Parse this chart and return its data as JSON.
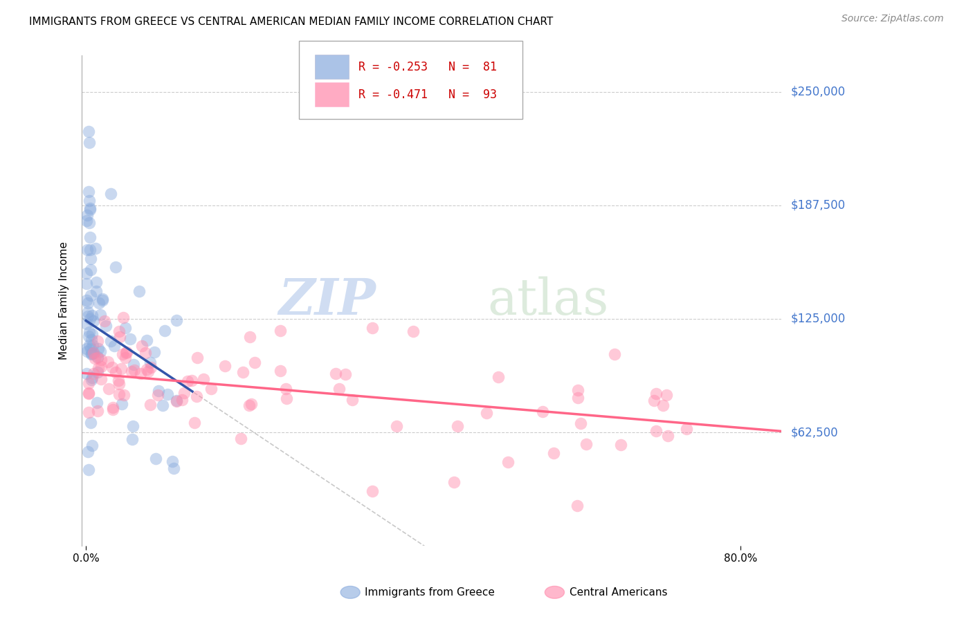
{
  "title": "IMMIGRANTS FROM GREECE VS CENTRAL AMERICAN MEDIAN FAMILY INCOME CORRELATION CHART",
  "source": "Source: ZipAtlas.com",
  "ylabel": "Median Family Income",
  "ytick_values": [
    62500,
    125000,
    187500,
    250000
  ],
  "ytick_labels": [
    "$62,500",
    "$125,000",
    "$187,500",
    "$250,000"
  ],
  "ymin": 0,
  "ymax": 270000,
  "xmin": -0.005,
  "xmax": 0.85,
  "legend1_text": "R = -0.253   N =  81",
  "legend2_text": "R = -0.471   N =  93",
  "watermark_zip": "ZIP",
  "watermark_atlas": "atlas",
  "color_blue": "#88AADD",
  "color_pink": "#FF88AA",
  "color_blue_line": "#3355AA",
  "color_pink_line": "#FF6688",
  "color_gray_dash": "#BBBBBB",
  "title_fontsize": 11,
  "source_fontsize": 10,
  "legend_text_color": "#CC0000"
}
